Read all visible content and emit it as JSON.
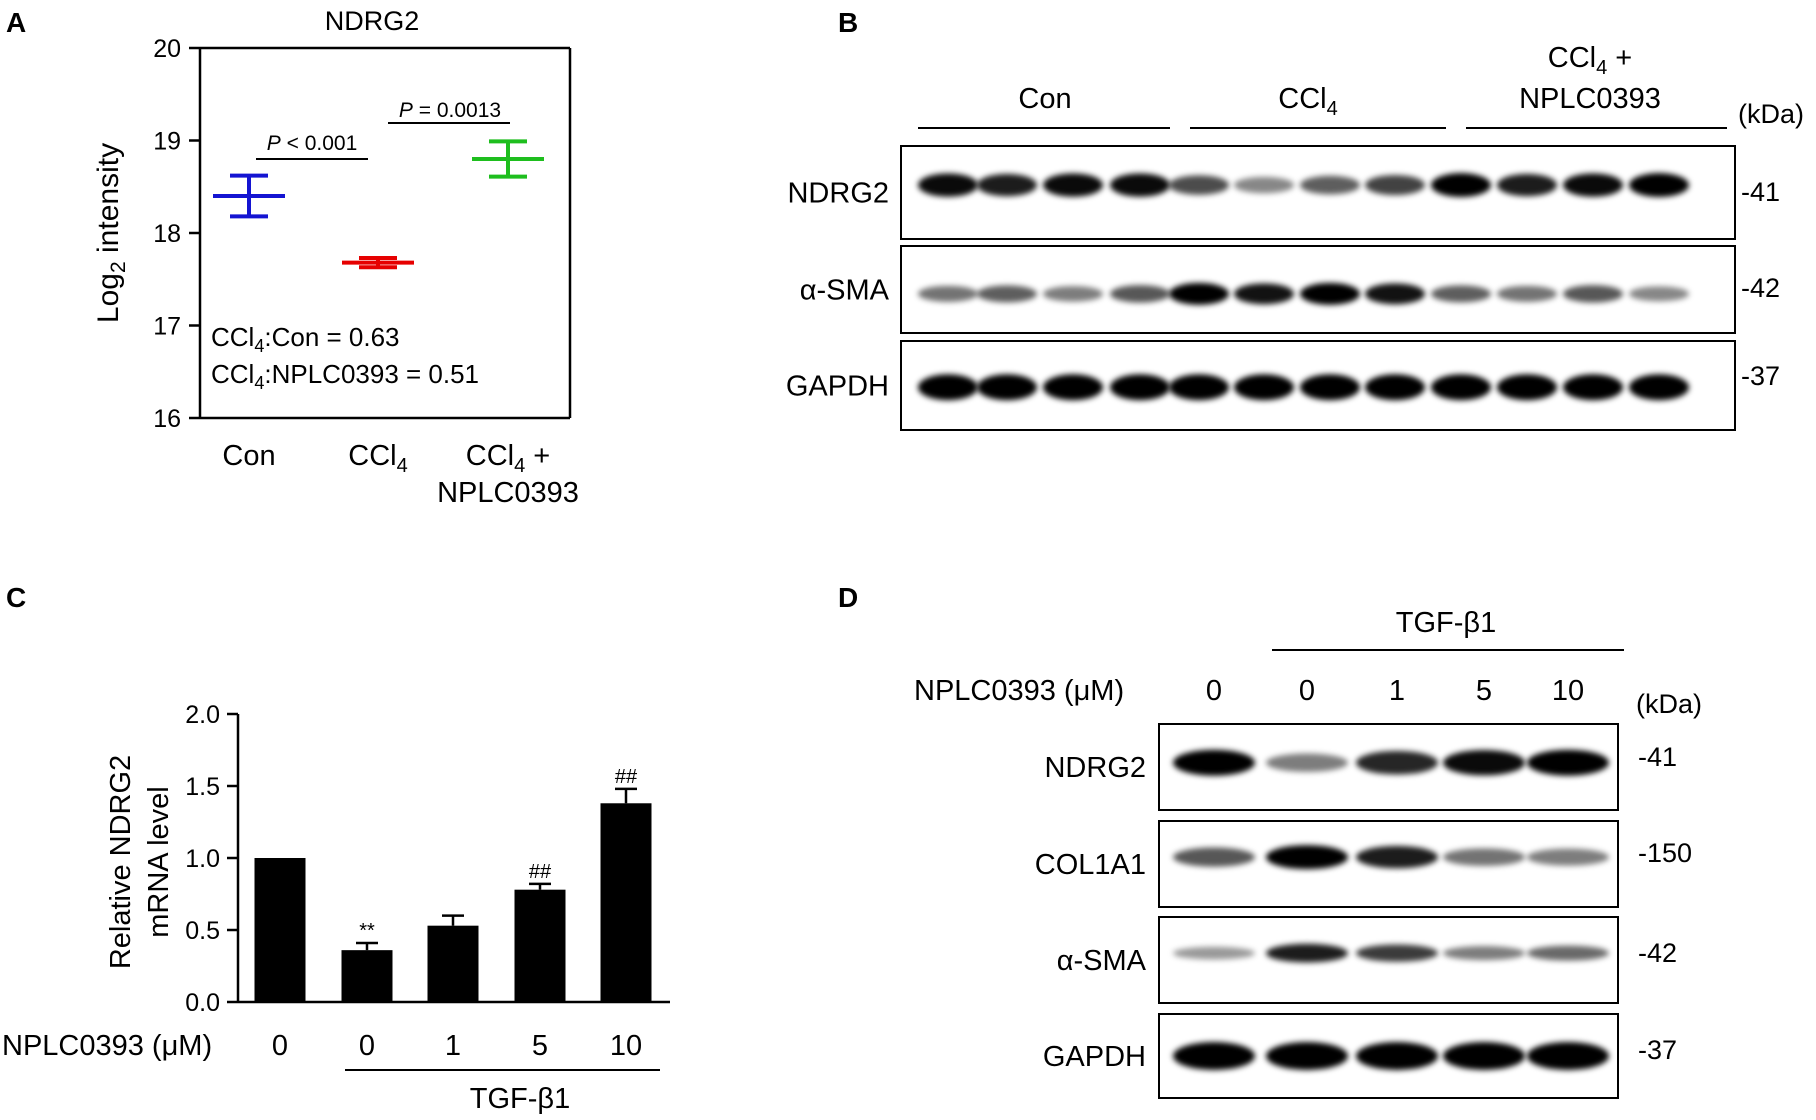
{
  "panels": {
    "A": {
      "letter": "A",
      "title": "NDRG2",
      "ylabel": "Log2 intensity",
      "ylabel_pre": "Log",
      "ylabel_sub": "2",
      "ylabel_post": " intensity",
      "ratio1": "CCl4:Con = 0.63",
      "ratio1_pre": "CCl",
      "ratio1_sub": "4",
      "ratio1_post": ":Con = 0.63",
      "ratio2": "CCl4:NPLC0393 = 0.51",
      "ratio2_pre": "CCl",
      "ratio2_sub": "4",
      "ratio2_post": ":NPLC0393 = 0.51",
      "pval1": "P < 0.001",
      "pval1_p": "P",
      "pval1_rest": " < 0.001",
      "pval2": "P = 0.0013",
      "pval2_p": "P",
      "pval2_rest": " = 0.0013",
      "xcat1": "Con",
      "xcat2_pre": "CCl",
      "xcat2_sub": "4",
      "xcat3_line1_pre": "CCl",
      "xcat3_line1_sub": "4",
      "xcat3_line1_post": " +",
      "xcat3_line2": "NPLC0393"
    },
    "B": {
      "letter": "B",
      "group1": "Con",
      "group2_pre": "CCl",
      "group2_sub": "4",
      "group3_line1_pre": "CCl",
      "group3_line1_sub": "4",
      "group3_line1_post": " +",
      "group3_line2": "NPLC0393",
      "kda": "(kDa)",
      "blots": [
        {
          "label": "NDRG2",
          "kda": "-41"
        },
        {
          "label": "α-SMA",
          "kda": "-42"
        },
        {
          "label": "GAPDH",
          "kda": "-37"
        }
      ]
    },
    "C": {
      "letter": "C",
      "ylabel_line1": "Relative NDRG2",
      "ylabel_line2": "mRNA level",
      "row_label": "NPLC0393 (μM)",
      "doses": [
        "0",
        "0",
        "1",
        "5",
        "10"
      ],
      "bracket_label": "TGF-β1",
      "sig": [
        "",
        "**",
        "",
        "##",
        "##"
      ]
    },
    "D": {
      "letter": "D",
      "treatment": "TGF-β1",
      "row_label": "NPLC0393 (μM)",
      "doses": [
        "0",
        "0",
        "1",
        "5",
        "10"
      ],
      "kda": "(kDa)",
      "blots": [
        {
          "label": "NDRG2",
          "kda": "-41"
        },
        {
          "label": "COL1A1",
          "kda": "-150"
        },
        {
          "label": "α-SMA",
          "kda": "-42"
        },
        {
          "label": "GAPDH",
          "kda": "-37"
        }
      ]
    }
  },
  "chart_data": [
    {
      "type": "scatter",
      "title": "NDRG2",
      "ylabel": "Log2 intensity",
      "ylim": [
        16,
        20
      ],
      "yticks": [
        "16",
        "17",
        "18",
        "19",
        "20"
      ],
      "categories": [
        "Con",
        "CCl4",
        "CCl4 + NPLC0393"
      ],
      "values": [
        18.4,
        17.68,
        18.8
      ],
      "errors": [
        0.22,
        0.05,
        0.19
      ],
      "colors": [
        "#1414d2",
        "#e60000",
        "#1ebe1e"
      ]
    },
    {
      "type": "bar",
      "ylabel": "Relative NDRG2 mRNA level",
      "ylim": [
        0,
        2.0
      ],
      "yticks": [
        "0.0",
        "0.5",
        "1.0",
        "1.5",
        "2.0"
      ],
      "categories": [
        "0",
        "0",
        "1",
        "5",
        "10"
      ],
      "values": [
        1.0,
        0.36,
        0.53,
        0.78,
        1.38
      ],
      "errors": [
        0,
        0.05,
        0.07,
        0.04,
        0.1
      ],
      "color": "#000000"
    }
  ]
}
